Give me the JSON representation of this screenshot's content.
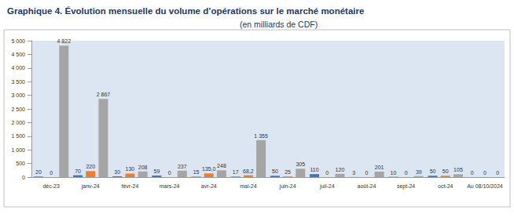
{
  "chart_data": {
    "type": "bar",
    "title": "Graphique 4. Évolution mensuelle du volume d’opérations sur le marché monétaire",
    "subtitle": "(en milliards de CDF)",
    "categories": [
      "déc-23",
      "janv-24",
      "févr-24",
      "mars-24",
      "avr-24",
      "mai-24",
      "juin-24",
      "juil-24",
      "août-24",
      "sept-24",
      "oct-24",
      "Au 08/10/2024"
    ],
    "series": [
      {
        "color": "#4472c4",
        "values": [
          20,
          70,
          30,
          59,
          15,
          17,
          50,
          110,
          3,
          10,
          50,
          0
        ]
      },
      {
        "color": "#ed7d31",
        "values": [
          0,
          220,
          130,
          0,
          135.0,
          68.2,
          25,
          0,
          0,
          0,
          50,
          0
        ],
        "value_labels": [
          "0",
          "220",
          "130",
          "0",
          "135,0",
          "68,2",
          "25",
          "0",
          "0",
          "0",
          "50",
          "0"
        ]
      },
      {
        "color": "#a5a5a5",
        "values": [
          4822,
          2867,
          208,
          237,
          248,
          1355,
          305,
          120,
          201,
          39,
          105,
          0
        ],
        "value_labels": [
          "4 822",
          "2 867",
          "208",
          "237",
          "248",
          "1 355",
          "305",
          "120",
          "201",
          "39",
          "105",
          "0"
        ]
      }
    ],
    "ylim": [
      0,
      5000
    ],
    "yticks": [
      0,
      500,
      {
        "value": 1000,
        "label": "1 000"
      },
      {
        "value": 1500,
        "label": "1 500"
      },
      {
        "value": 2000,
        "label": "2 000"
      },
      {
        "value": 2500,
        "label": "2 500"
      },
      {
        "value": 3000,
        "label": "3 000"
      },
      {
        "value": 3500,
        "label": "3 500"
      },
      {
        "value": 4000,
        "label": "4 000"
      },
      {
        "value": 4500,
        "label": "4 500"
      },
      {
        "value": 5000,
        "label": "5 000"
      }
    ],
    "grid": false,
    "data_labels": true
  }
}
